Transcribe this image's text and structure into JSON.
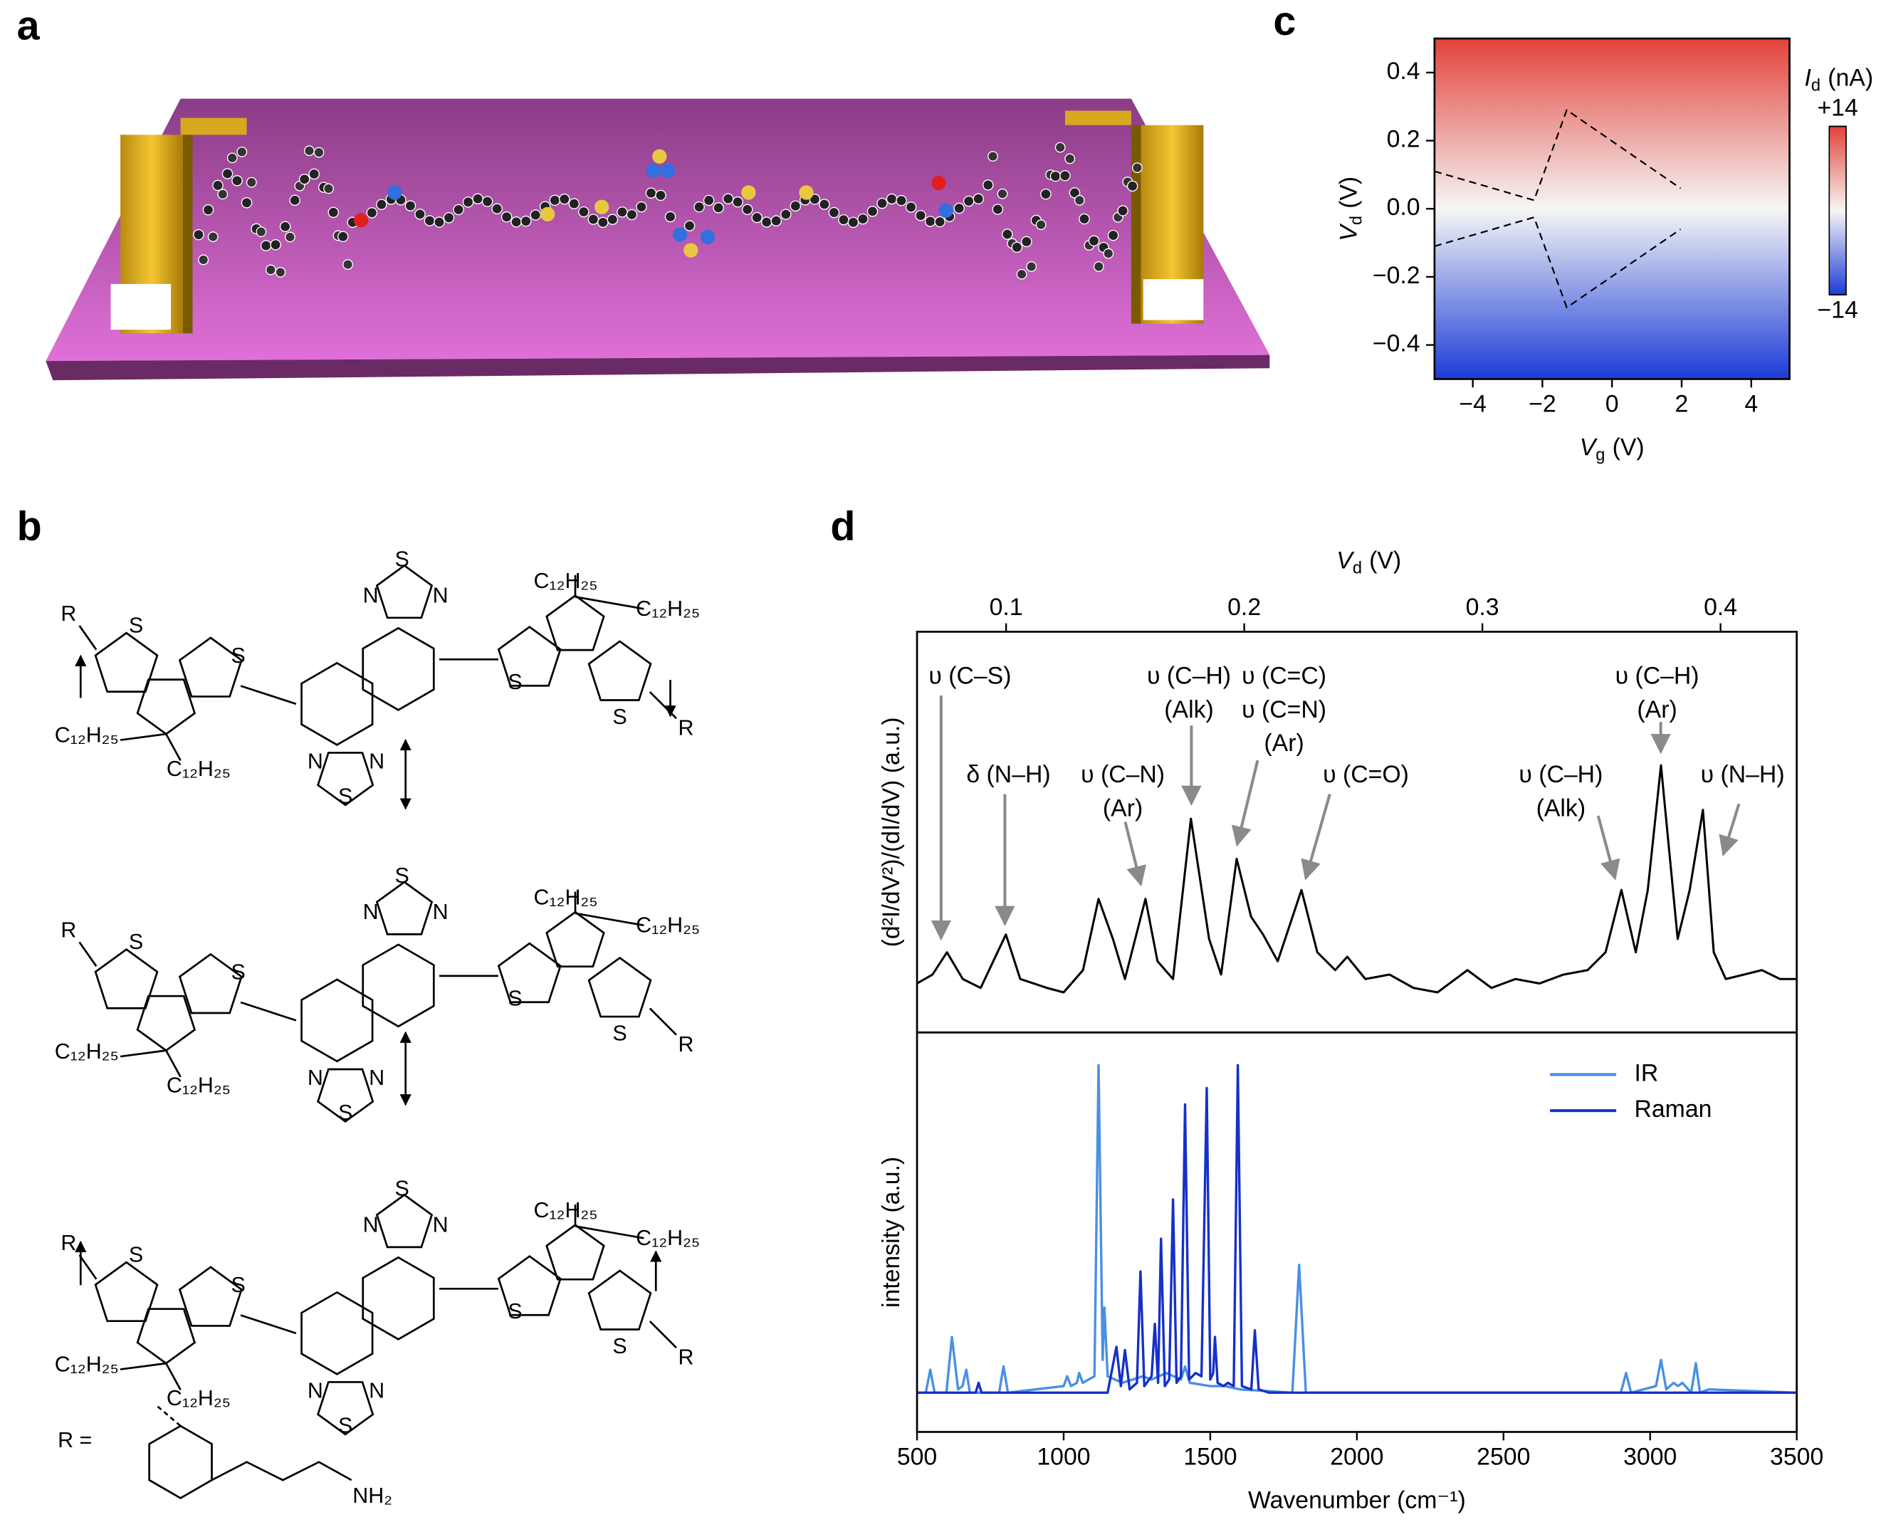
{
  "panels": {
    "a": "a",
    "b": "b",
    "c": "c",
    "d": "d"
  },
  "structures": [
    {
      "labels": [
        "R",
        "S",
        "S",
        "S",
        "N",
        "N",
        "C₁₂H₂₅",
        "C₁₂H₂₅",
        "S",
        "S",
        "R",
        "C₁₂H₂₅",
        "C₁₂H₂₅",
        "N",
        "N",
        "S"
      ]
    },
    {
      "labels": [
        "R",
        "S",
        "S",
        "S",
        "N",
        "N",
        "C₁₂H₂₅",
        "C₁₂H₂₅",
        "S",
        "S",
        "R",
        "C₁₂H₂₅",
        "C₁₂H₂₅",
        "N",
        "N",
        "S"
      ]
    },
    {
      "labels": [
        "R",
        "S",
        "S",
        "S",
        "N",
        "N",
        "C₁₂H₂₅",
        "C₁₂H₂₅",
        "S",
        "S",
        "R",
        "C₁₂H₂₅",
        "C₁₂H₂₅",
        "N",
        "N",
        "S"
      ]
    }
  ],
  "substituent": {
    "label": "R =",
    "group": "NH₂"
  },
  "chart_data": [
    {
      "type": "heatmap",
      "xlabel": {
        "main": "V",
        "sub": "g",
        "unit": "(V)"
      },
      "ylabel": {
        "main": "V",
        "sub": "d",
        "unit": "(V)"
      },
      "xlim": [
        -5.1,
        5.1
      ],
      "ylim": [
        -0.5,
        0.5
      ],
      "xticks": [
        {
          "value": -4,
          "label": "−4"
        },
        {
          "value": -2,
          "label": "−2"
        },
        0,
        2,
        4
      ],
      "yticks": [
        {
          "value": -0.4,
          "label": "−0.4"
        },
        {
          "value": -0.2,
          "label": "−0.2"
        },
        {
          "value": 0,
          "label": "0.0"
        },
        0.2,
        0.4
      ],
      "cmap": [
        "#1b3cd6",
        "#f6f6f6",
        "#e2423a"
      ],
      "colorbar": {
        "label": {
          "main": "I",
          "sub": "d",
          "unit": "(nA)"
        },
        "zlim": [
          -14,
          14
        ],
        "ticks": [
          {
            "value": 14,
            "label": "+14"
          },
          {
            "value": -14,
            "label": "−14"
          }
        ]
      },
      "boundaries": [
        {
          "x": [
            -5.1,
            -2.24,
            -1.3,
            1.97
          ],
          "y": [
            0.11,
            0.025,
            0.29,
            0.06
          ]
        },
        {
          "x": [
            -5.1,
            -2.24,
            -1.3,
            1.97
          ],
          "y": [
            -0.11,
            -0.025,
            -0.29,
            -0.06
          ]
        }
      ]
    },
    {
      "type": "line",
      "x2label": {
        "main": "V",
        "sub": "d",
        "unit": "(V)"
      },
      "ylabel": "(d²I/dV²)/(dI/dV) (a.u.)",
      "xlim": [
        500,
        3500
      ],
      "ylim": [
        0,
        0.9
      ],
      "x2lim": [
        0.0626,
        0.432
      ],
      "x2ticks": [
        0.1,
        0.2,
        0.3,
        0.4
      ],
      "color": "#000000",
      "x": [
        500,
        553,
        602,
        656,
        717,
        803,
        852,
        943,
        1000,
        1066,
        1119,
        1168,
        1209,
        1279,
        1320,
        1373,
        1434,
        1496,
        1537,
        1590,
        1639,
        1680,
        1730,
        1811,
        1865,
        1926,
        1967,
        2029,
        2111,
        2193,
        2275,
        2377,
        2459,
        2541,
        2623,
        2705,
        2787,
        2848,
        2902,
        2951,
        2992,
        3037,
        3094,
        3135,
        3180,
        3217,
        3258,
        3320,
        3381,
        3443,
        3500
      ],
      "values": [
        0.11,
        0.13,
        0.18,
        0.12,
        0.1,
        0.22,
        0.12,
        0.1,
        0.09,
        0.14,
        0.3,
        0.21,
        0.12,
        0.3,
        0.16,
        0.12,
        0.48,
        0.21,
        0.13,
        0.39,
        0.26,
        0.22,
        0.16,
        0.32,
        0.18,
        0.14,
        0.17,
        0.12,
        0.13,
        0.1,
        0.09,
        0.14,
        0.1,
        0.12,
        0.11,
        0.13,
        0.14,
        0.18,
        0.32,
        0.18,
        0.32,
        0.6,
        0.21,
        0.32,
        0.5,
        0.18,
        0.12,
        0.13,
        0.14,
        0.12,
        0.12
      ],
      "annotations": [
        {
          "lines": [
            "υ (C–S)"
          ]
        },
        {
          "lines": [
            "δ (N–H)"
          ]
        },
        {
          "lines": [
            "υ (C–N)",
            "(Ar)"
          ]
        },
        {
          "lines": [
            "υ (C–H)",
            "(Alk)"
          ]
        },
        {
          "lines": [
            "υ (C=C)",
            "υ (C=N)",
            "(Ar)"
          ]
        },
        {
          "lines": [
            "υ (C=O)"
          ]
        },
        {
          "lines": [
            "υ (C–H)",
            "(Alk)"
          ]
        },
        {
          "lines": [
            "υ (C–H)",
            "(Ar)"
          ]
        },
        {
          "lines": [
            "υ (N–H)"
          ]
        }
      ]
    },
    {
      "type": "line",
      "xlabel": "Wavenumber (cm⁻¹)",
      "ylabel": "intensity (a.u.)",
      "xlim": [
        500,
        3500
      ],
      "xticks": [
        500,
        1000,
        1500,
        2000,
        2500,
        3000,
        3500
      ],
      "ylim": [
        -0.12,
        1.1
      ],
      "legend": "upper right",
      "series": [
        {
          "name": "IR",
          "color": "#4a8fe3",
          "x": [
            500,
            530,
            545,
            560,
            600,
            619,
            640,
            655,
            668,
            680,
            780,
            795,
            810,
            1000,
            1012,
            1025,
            1045,
            1053,
            1065,
            1105,
            1119,
            1133,
            1139,
            1150,
            1200,
            1270,
            1300,
            1350,
            1400,
            1414,
            1430,
            1500,
            1550,
            1600,
            1780,
            1803,
            1826,
            2900,
            2918,
            2935,
            3020,
            3037,
            3055,
            3080,
            3095,
            3110,
            3140,
            3156,
            3170,
            3200,
            3500
          ],
          "values": [
            0,
            0,
            0.07,
            0,
            0,
            0.17,
            0.01,
            0.02,
            0.07,
            0,
            0,
            0.08,
            0,
            0.02,
            0.05,
            0.02,
            0.03,
            0.06,
            0.03,
            0.05,
            1.0,
            0.1,
            0.26,
            0.05,
            0.03,
            0.05,
            0.04,
            0.06,
            0.04,
            0.08,
            0.03,
            0.02,
            0.02,
            0.01,
            0,
            0.39,
            0,
            0,
            0.06,
            0,
            0.02,
            0.1,
            0.01,
            0.03,
            0.02,
            0.03,
            0,
            0.09,
            0,
            0.01,
            0
          ]
        },
        {
          "name": "Raman",
          "color": "#1630c8",
          "x": [
            500,
            700,
            710,
            720,
            1150,
            1180,
            1195,
            1209,
            1225,
            1250,
            1262,
            1275,
            1300,
            1311,
            1322,
            1332,
            1345,
            1360,
            1373,
            1385,
            1400,
            1414,
            1428,
            1450,
            1470,
            1488,
            1500,
            1510,
            1516,
            1525,
            1545,
            1560,
            1580,
            1594,
            1608,
            1640,
            1652,
            1665,
            1700,
            3500
          ],
          "values": [
            0,
            0,
            0.03,
            0,
            0,
            0.14,
            0.02,
            0.13,
            0.01,
            0.03,
            0.37,
            0.02,
            0.05,
            0.21,
            0.03,
            0.47,
            0.02,
            0.04,
            0.59,
            0.03,
            0.05,
            0.88,
            0.04,
            0.06,
            0.05,
            0.93,
            0.04,
            0.06,
            0.17,
            0.03,
            0.02,
            0.03,
            0.02,
            1.0,
            0.02,
            0.01,
            0.19,
            0.01,
            0,
            0
          ]
        }
      ]
    }
  ]
}
